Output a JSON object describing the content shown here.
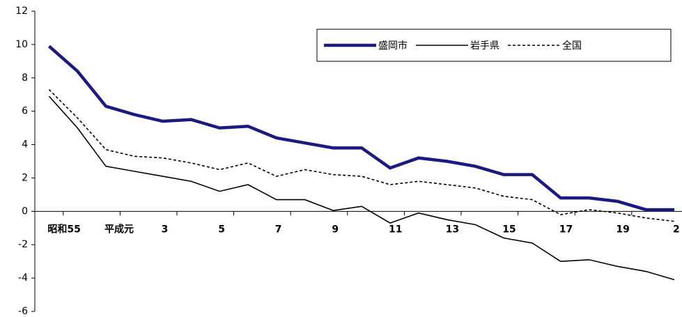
{
  "chart_data": {
    "type": "line",
    "categories": [
      "昭和55",
      null,
      "平成元",
      null,
      "3",
      null,
      "5",
      null,
      "7",
      null,
      "9",
      null,
      "11",
      null,
      "13",
      null,
      "15",
      null,
      "17",
      null,
      "19",
      null,
      "2"
    ],
    "series": [
      {
        "name": "盛岡市",
        "color": "#1a1a80",
        "style": "thick",
        "values": [
          9.9,
          8.4,
          6.3,
          5.8,
          5.4,
          5.5,
          5.0,
          5.1,
          4.4,
          4.1,
          3.8,
          3.8,
          2.6,
          3.2,
          3.0,
          2.7,
          2.2,
          2.2,
          0.8,
          0.8,
          0.6,
          0.1,
          0.1
        ]
      },
      {
        "name": "岩手県",
        "color": "#000000",
        "style": "solid",
        "values": [
          6.9,
          5.0,
          2.7,
          2.4,
          2.1,
          1.8,
          1.2,
          1.6,
          0.7,
          0.7,
          0.05,
          0.3,
          -0.7,
          -0.1,
          -0.5,
          -0.8,
          -1.6,
          -1.9,
          -3.0,
          -2.9,
          -3.3,
          -3.6,
          -4.1
        ]
      },
      {
        "name": "全国",
        "color": "#000000",
        "style": "dashed",
        "values": [
          7.3,
          5.6,
          3.7,
          3.3,
          3.2,
          2.9,
          2.5,
          2.9,
          2.1,
          2.5,
          2.2,
          2.1,
          1.6,
          1.8,
          1.6,
          1.4,
          0.9,
          0.7,
          -0.2,
          0.1,
          -0.1,
          -0.4,
          -0.6
        ]
      }
    ],
    "ylim": [
      -6,
      12
    ],
    "yticks": [
      -6,
      -4,
      -2,
      0,
      2,
      4,
      6,
      8,
      10,
      12
    ],
    "legend": "top-right"
  }
}
